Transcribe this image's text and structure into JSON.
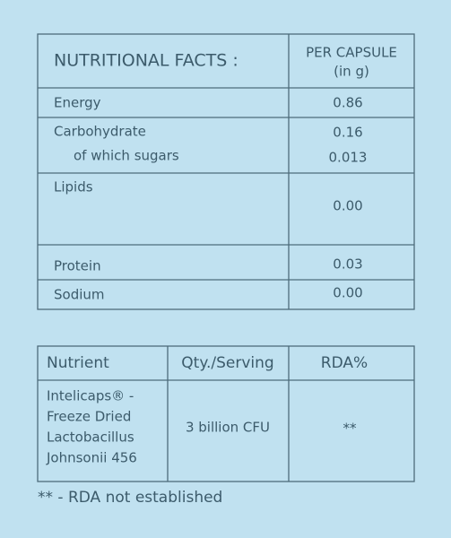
{
  "nutrition_table": {
    "title": "NUTRITIONAL FACTS :",
    "column_header": [
      "PER CAPSULE",
      "(in g)"
    ],
    "rows": [
      {
        "name": "Energy",
        "value": "0.86"
      },
      {
        "name": "Carbohydrate",
        "value": "0.16"
      },
      {
        "name": "of which sugars",
        "value": "0.013"
      },
      {
        "name": "Lipids",
        "value": "0.00"
      },
      {
        "name": "Protein",
        "value": "0.03"
      },
      {
        "name": "Sodium",
        "value": "0.00"
      }
    ]
  },
  "nutrient_table": {
    "headers": [
      "Nutrient",
      "Qty./Serving",
      "RDA%"
    ],
    "row": {
      "nutrient": [
        "Intelicaps® -",
        "Freeze Dried",
        "Lactobacillus",
        "Johnsonii 456"
      ],
      "qty": "3 billion CFU",
      "rda": "**"
    }
  },
  "footnote": "** - RDA not established"
}
